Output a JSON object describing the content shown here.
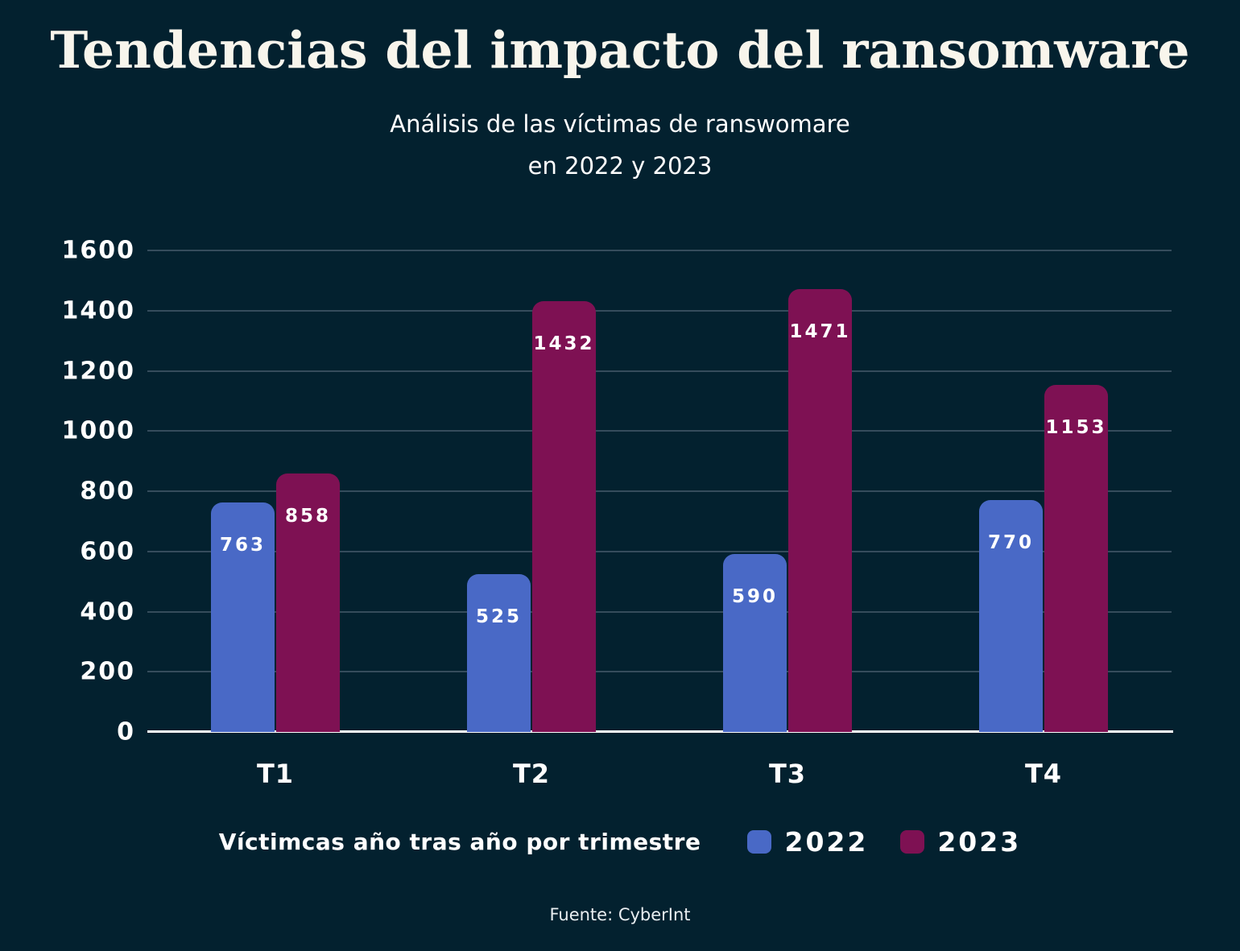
{
  "header": {
    "title": "Tendencias del impacto del ransomware",
    "subtitle_line1": "Análisis de las víctimas de ranswomare",
    "subtitle_line2": "en 2022 y 2023"
  },
  "chart_data": {
    "type": "bar",
    "title": "Tendencias del impacto del ransomware",
    "subtitle": "Análisis de las víctimas de ranswomare en 2022 y 2023",
    "categories": [
      "T1",
      "T2",
      "T3",
      "T4"
    ],
    "series": [
      {
        "name": "2022",
        "color": "#4969c6",
        "values": [
          763,
          525,
          590,
          770
        ]
      },
      {
        "name": "2023",
        "color": "#7e1153",
        "values": [
          858,
          1432,
          1471,
          1153
        ]
      }
    ],
    "ylim": [
      0,
      1600
    ],
    "yticks": [
      0,
      200,
      400,
      600,
      800,
      1000,
      1200,
      1400,
      1600
    ],
    "grid": true,
    "value_labels": "inside-top",
    "legend_label": "Víctimcas año tras año por trimestre",
    "legend_position": "bottom"
  },
  "footer": {
    "source": "Fuente: CyberInt"
  },
  "colors": {
    "background": "#03212f",
    "bar_2022": "#4969c6",
    "bar_2023": "#7e1153",
    "gridline": "#354c5c",
    "axis_line": "#ffffff",
    "text": "#ffffff",
    "title_text": "#f8f5ec"
  }
}
